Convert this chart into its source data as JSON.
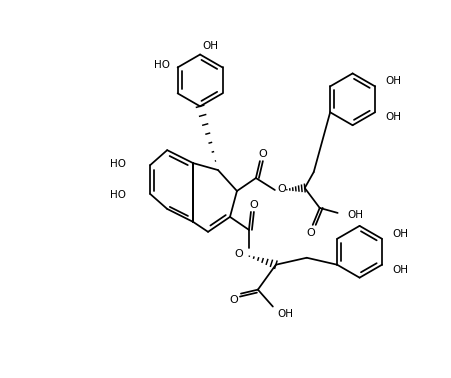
{
  "bg": "#ffffff",
  "lc": "#000000",
  "lw": 1.25,
  "figsize": [
    4.52,
    3.78
  ],
  "dpi": 100,
  "xlim": [
    0,
    452
  ],
  "ylim": [
    378,
    0
  ]
}
